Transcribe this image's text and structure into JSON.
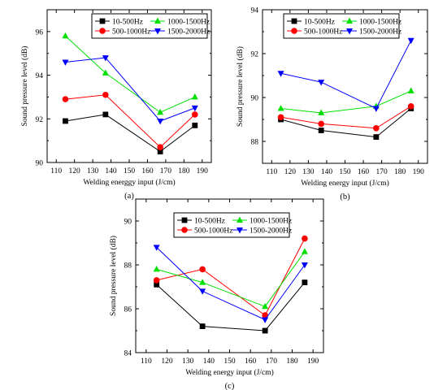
{
  "panels": [
    {
      "panel_label": "(a)",
      "xlabel": "Welding energgy input (J/cm)",
      "ylabel": "Sound pressure level (dB)",
      "xlim": [
        105,
        195
      ],
      "ylim": [
        90,
        97
      ],
      "xticks": [
        110,
        120,
        130,
        140,
        150,
        160,
        170,
        180,
        190
      ],
      "yticks": [
        90,
        92,
        94,
        96
      ],
      "legend_position": "top"
    },
    {
      "panel_label": "(b)",
      "xlabel": "Welding energy input (J/cm)",
      "ylabel": "Sound pressure level (dB)",
      "xlim": [
        105,
        195
      ],
      "ylim": [
        87,
        94
      ],
      "xticks": [
        110,
        120,
        130,
        140,
        150,
        160,
        170,
        180,
        190
      ],
      "yticks": [
        88,
        90,
        92,
        94
      ],
      "legend_position": "top"
    },
    {
      "panel_label": "(c)",
      "xlabel": "Welding energy input (J/cm)",
      "ylabel": "Sound pressure level (dB)",
      "xlim": [
        105,
        195
      ],
      "ylim": [
        84,
        91
      ],
      "xticks": [
        110,
        120,
        130,
        140,
        150,
        160,
        170,
        180,
        190
      ],
      "yticks": [
        84,
        86,
        88,
        90
      ],
      "legend_position": "top"
    }
  ],
  "series_styles": [
    {
      "name": "10-500Hz",
      "color": "#000000",
      "marker": "square"
    },
    {
      "name": "500-1000Hz",
      "color": "#ff0000",
      "marker": "circle"
    },
    {
      "name": "1000-1500Hz",
      "color": "#00e000",
      "marker": "triangle-up"
    },
    {
      "name": "1500-2000Hz",
      "color": "#0000ff",
      "marker": "triangle-down"
    }
  ],
  "chart_data": [
    {
      "type": "line",
      "x": [
        115,
        137,
        167,
        186
      ],
      "series": [
        {
          "name": "10-500Hz",
          "values": [
            91.9,
            92.2,
            90.5,
            91.7
          ]
        },
        {
          "name": "500-1000Hz",
          "values": [
            92.9,
            93.1,
            90.7,
            92.2
          ]
        },
        {
          "name": "1000-1500Hz",
          "values": [
            95.8,
            94.1,
            92.3,
            93.0
          ]
        },
        {
          "name": "1500-2000Hz",
          "values": [
            94.6,
            94.8,
            91.9,
            92.5
          ]
        }
      ]
    },
    {
      "type": "line",
      "x": [
        115,
        137,
        167,
        186
      ],
      "series": [
        {
          "name": "10-500Hz",
          "values": [
            89.0,
            88.5,
            88.2,
            89.5
          ]
        },
        {
          "name": "500-1000Hz",
          "values": [
            89.1,
            88.8,
            88.6,
            89.6
          ]
        },
        {
          "name": "1000-1500Hz",
          "values": [
            89.5,
            89.3,
            89.6,
            90.3
          ]
        },
        {
          "name": "1500-2000Hz",
          "values": [
            91.1,
            90.7,
            89.5,
            92.6
          ]
        }
      ]
    },
    {
      "type": "line",
      "x": [
        115,
        137,
        167,
        186
      ],
      "series": [
        {
          "name": "10-500Hz",
          "values": [
            87.1,
            85.2,
            85.0,
            87.2
          ]
        },
        {
          "name": "500-1000Hz",
          "values": [
            87.3,
            87.8,
            85.7,
            89.2
          ]
        },
        {
          "name": "1000-1500Hz",
          "values": [
            87.8,
            87.2,
            86.1,
            88.6
          ]
        },
        {
          "name": "1500-2000Hz",
          "values": [
            88.8,
            86.8,
            85.5,
            88.0
          ]
        }
      ]
    }
  ]
}
